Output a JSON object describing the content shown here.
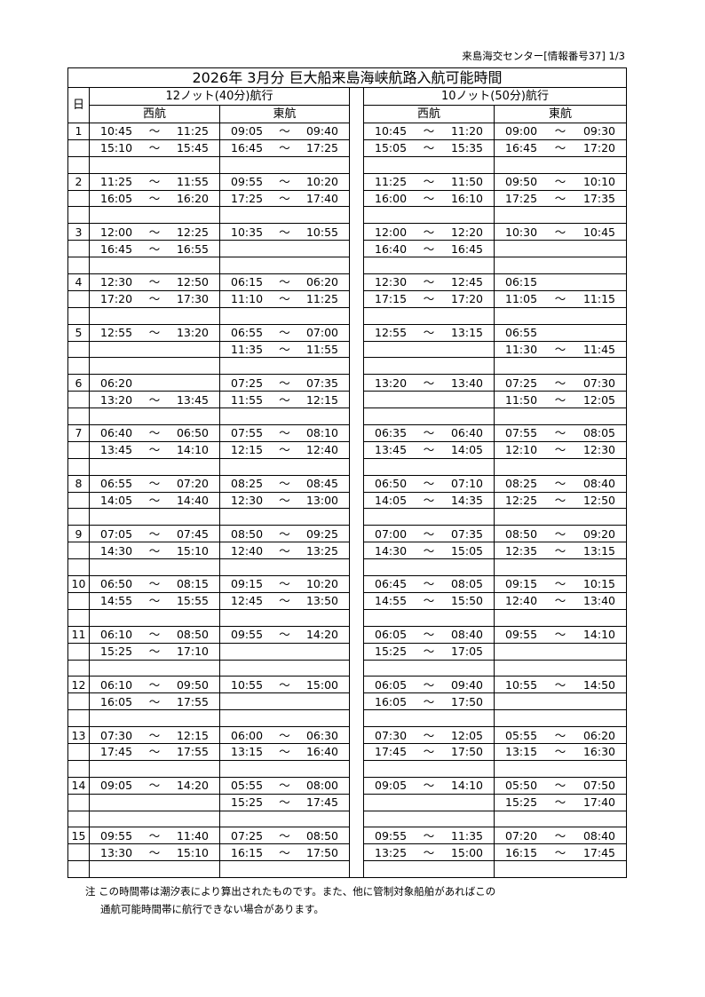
{
  "header_right": "来島海交センター[情報番号37] 1/3",
  "title": "2026年 3月分 巨大船来島海峡航路入航可能時間",
  "day_label": "日",
  "groups": [
    "12ノット(40分)航行",
    "10ノット(50分)航行"
  ],
  "directions": [
    "西航",
    "東航",
    "西航",
    "東航"
  ],
  "tilde": "～",
  "days": [
    {
      "day": "1",
      "rows": [
        [
          [
            "10:45",
            "11:25"
          ],
          [
            "09:05",
            "09:40"
          ],
          [
            "10:45",
            "11:20"
          ],
          [
            "09:00",
            "09:30"
          ]
        ],
        [
          [
            "15:10",
            "15:45"
          ],
          [
            "16:45",
            "17:25"
          ],
          [
            "15:05",
            "15:35"
          ],
          [
            "16:45",
            "17:20"
          ]
        ]
      ]
    },
    {
      "day": "2",
      "rows": [
        [
          [
            "11:25",
            "11:55"
          ],
          [
            "09:55",
            "10:20"
          ],
          [
            "11:25",
            "11:50"
          ],
          [
            "09:50",
            "10:10"
          ]
        ],
        [
          [
            "16:05",
            "16:20"
          ],
          [
            "17:25",
            "17:40"
          ],
          [
            "16:00",
            "16:10"
          ],
          [
            "17:25",
            "17:35"
          ]
        ]
      ]
    },
    {
      "day": "3",
      "rows": [
        [
          [
            "12:00",
            "12:25"
          ],
          [
            "10:35",
            "10:55"
          ],
          [
            "12:00",
            "12:20"
          ],
          [
            "10:30",
            "10:45"
          ]
        ],
        [
          [
            "16:45",
            "16:55"
          ],
          [],
          [
            "16:40",
            "16:45"
          ],
          []
        ]
      ]
    },
    {
      "day": "4",
      "rows": [
        [
          [
            "12:30",
            "12:50"
          ],
          [
            "06:15",
            "06:20"
          ],
          [
            "12:30",
            "12:45"
          ],
          [
            "06:15"
          ]
        ],
        [
          [
            "17:20",
            "17:30"
          ],
          [
            "11:10",
            "11:25"
          ],
          [
            "17:15",
            "17:20"
          ],
          [
            "11:05",
            "11:15"
          ]
        ]
      ]
    },
    {
      "day": "5",
      "rows": [
        [
          [
            "12:55",
            "13:20"
          ],
          [
            "06:55",
            "07:00"
          ],
          [
            "12:55",
            "13:15"
          ],
          [
            "06:55"
          ]
        ],
        [
          [],
          [
            "11:35",
            "11:55"
          ],
          [],
          [
            "11:30",
            "11:45"
          ]
        ]
      ]
    },
    {
      "day": "6",
      "rows": [
        [
          [
            "06:20"
          ],
          [
            "07:25",
            "07:35"
          ],
          [
            "13:20",
            "13:40"
          ],
          [
            "07:25",
            "07:30"
          ]
        ],
        [
          [
            "13:20",
            "13:45"
          ],
          [
            "11:55",
            "12:15"
          ],
          [],
          [
            "11:50",
            "12:05"
          ]
        ]
      ]
    },
    {
      "day": "7",
      "rows": [
        [
          [
            "06:40",
            "06:50"
          ],
          [
            "07:55",
            "08:10"
          ],
          [
            "06:35",
            "06:40"
          ],
          [
            "07:55",
            "08:05"
          ]
        ],
        [
          [
            "13:45",
            "14:10"
          ],
          [
            "12:15",
            "12:40"
          ],
          [
            "13:45",
            "14:05"
          ],
          [
            "12:10",
            "12:30"
          ]
        ]
      ]
    },
    {
      "day": "8",
      "rows": [
        [
          [
            "06:55",
            "07:20"
          ],
          [
            "08:25",
            "08:45"
          ],
          [
            "06:50",
            "07:10"
          ],
          [
            "08:25",
            "08:40"
          ]
        ],
        [
          [
            "14:05",
            "14:40"
          ],
          [
            "12:30",
            "13:00"
          ],
          [
            "14:05",
            "14:35"
          ],
          [
            "12:25",
            "12:50"
          ]
        ]
      ]
    },
    {
      "day": "9",
      "rows": [
        [
          [
            "07:05",
            "07:45"
          ],
          [
            "08:50",
            "09:25"
          ],
          [
            "07:00",
            "07:35"
          ],
          [
            "08:50",
            "09:20"
          ]
        ],
        [
          [
            "14:30",
            "15:10"
          ],
          [
            "12:40",
            "13:25"
          ],
          [
            "14:30",
            "15:05"
          ],
          [
            "12:35",
            "13:15"
          ]
        ]
      ]
    },
    {
      "day": "10",
      "rows": [
        [
          [
            "06:50",
            "08:15"
          ],
          [
            "09:15",
            "10:20"
          ],
          [
            "06:45",
            "08:05"
          ],
          [
            "09:15",
            "10:15"
          ]
        ],
        [
          [
            "14:55",
            "15:55"
          ],
          [
            "12:45",
            "13:50"
          ],
          [
            "14:55",
            "15:50"
          ],
          [
            "12:40",
            "13:40"
          ]
        ]
      ]
    },
    {
      "day": "11",
      "rows": [
        [
          [
            "06:10",
            "08:50"
          ],
          [
            "09:55",
            "14:20"
          ],
          [
            "06:05",
            "08:40"
          ],
          [
            "09:55",
            "14:10"
          ]
        ],
        [
          [
            "15:25",
            "17:10"
          ],
          [],
          [
            "15:25",
            "17:05"
          ],
          []
        ]
      ]
    },
    {
      "day": "12",
      "rows": [
        [
          [
            "06:10",
            "09:50"
          ],
          [
            "10:55",
            "15:00"
          ],
          [
            "06:05",
            "09:40"
          ],
          [
            "10:55",
            "14:50"
          ]
        ],
        [
          [
            "16:05",
            "17:55"
          ],
          [],
          [
            "16:05",
            "17:50"
          ],
          []
        ]
      ]
    },
    {
      "day": "13",
      "rows": [
        [
          [
            "07:30",
            "12:15"
          ],
          [
            "06:00",
            "06:30"
          ],
          [
            "07:30",
            "12:05"
          ],
          [
            "05:55",
            "06:20"
          ]
        ],
        [
          [
            "17:45",
            "17:55"
          ],
          [
            "13:15",
            "16:40"
          ],
          [
            "17:45",
            "17:50"
          ],
          [
            "13:15",
            "16:30"
          ]
        ]
      ]
    },
    {
      "day": "14",
      "rows": [
        [
          [
            "09:05",
            "14:20"
          ],
          [
            "05:55",
            "08:00"
          ],
          [
            "09:05",
            "14:10"
          ],
          [
            "05:50",
            "07:50"
          ]
        ],
        [
          [],
          [
            "15:25",
            "17:45"
          ],
          [],
          [
            "15:25",
            "17:40"
          ]
        ]
      ]
    },
    {
      "day": "15",
      "rows": [
        [
          [
            "09:55",
            "11:40"
          ],
          [
            "07:25",
            "08:50"
          ],
          [
            "09:55",
            "11:35"
          ],
          [
            "07:20",
            "08:40"
          ]
        ],
        [
          [
            "13:30",
            "15:10"
          ],
          [
            "16:15",
            "17:50"
          ],
          [
            "13:25",
            "15:00"
          ],
          [
            "16:15",
            "17:45"
          ]
        ]
      ]
    }
  ],
  "note": {
    "prefix": "注",
    "line1": "この時間帯は潮汐表により算出されたものです。また、他に管制対象船舶があればこの",
    "line2": "通航可能時間帯に航行できない場合があります。"
  }
}
